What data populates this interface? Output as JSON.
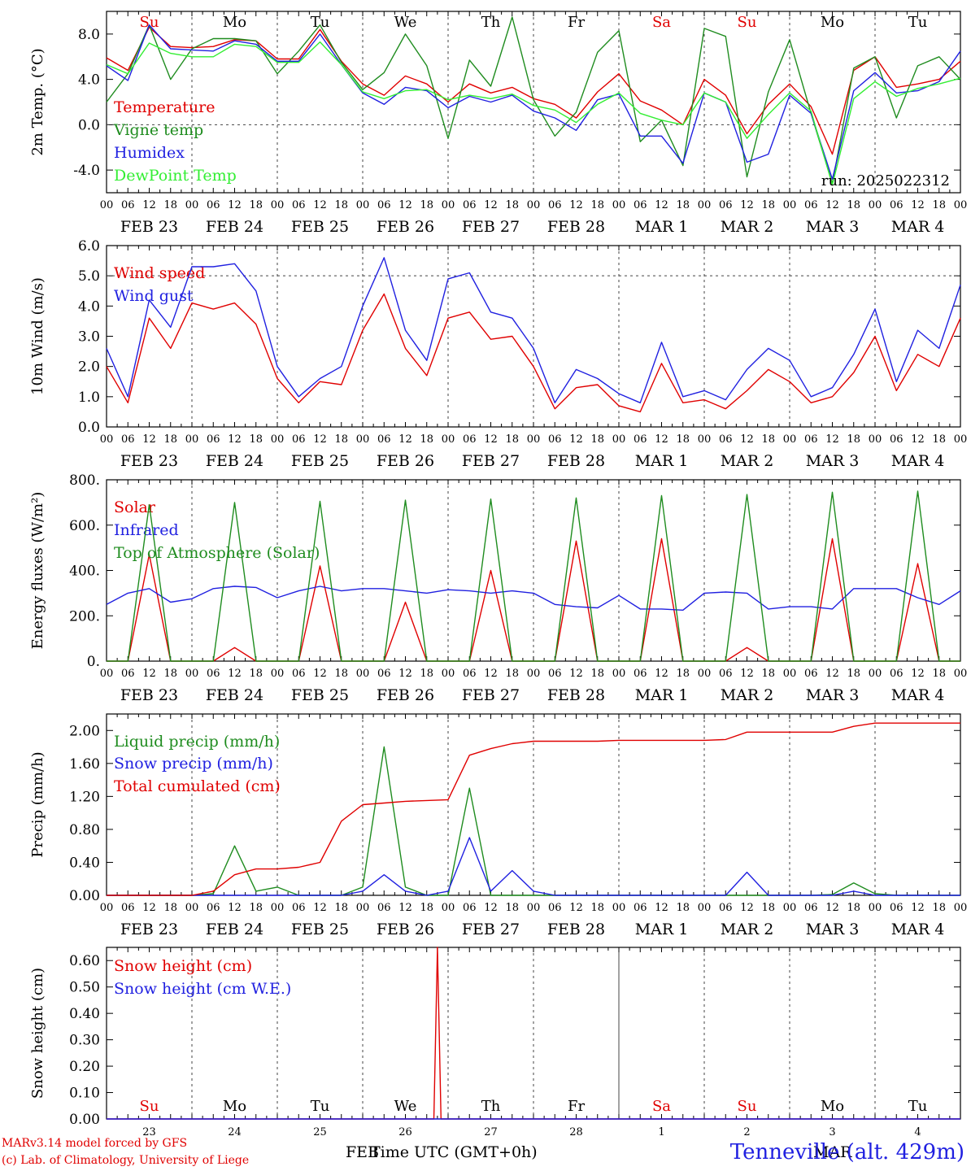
{
  "weekdays": [
    "Su",
    "Mo",
    "Tu",
    "We",
    "Th",
    "Fr",
    "Sa",
    "Su",
    "Mo",
    "Tu"
  ],
  "weekday_colors": [
    "#e00000",
    "#000000",
    "#000000",
    "#000000",
    "#000000",
    "#000000",
    "#e00000",
    "#e00000",
    "#000000",
    "#000000"
  ],
  "date_labels": [
    "FEB 23",
    "FEB 24",
    "FEB 25",
    "FEB 26",
    "FEB 27",
    "FEB 28",
    "MAR  1",
    "MAR  2",
    "MAR  3",
    "MAR  4"
  ],
  "hour_labels": [
    "00",
    "06",
    "12",
    "18"
  ],
  "end_hour_label": "00",
  "day_numbers": [
    "23",
    "24",
    "25",
    "26",
    "27",
    "28",
    "1",
    "2",
    "3",
    "4"
  ],
  "footer": {
    "credit1": "MARv3.14 model forced by GFS",
    "credit2": "(c) Lab. of Climatology, University of Liege",
    "xlabel": "Time UTC (GMT+0h)",
    "month_left": "FEB",
    "month_right": "MAR",
    "station": "Tenneville (alt. 429m)"
  },
  "chart_data": [
    {
      "type": "line",
      "ylabel": "2m Temp. (°C)",
      "ylim": [
        -6.0,
        10.0
      ],
      "yticks": [
        -4.0,
        0.0,
        4.0,
        8.0
      ],
      "ytick_labels": [
        "-4.0",
        "0.0",
        "4.0",
        "8.0"
      ],
      "ref_lines": [
        0.0
      ],
      "annotation": "run: 2025022312",
      "x_hours": [
        0,
        6,
        12,
        18,
        24,
        30,
        36,
        42,
        48,
        54,
        60,
        66,
        72,
        78,
        84,
        90,
        96,
        102,
        108,
        114,
        120,
        126,
        132,
        138,
        144,
        150,
        156,
        162,
        168,
        174,
        180,
        186,
        192,
        198,
        204,
        210,
        216,
        222,
        228,
        234,
        240
      ],
      "series": [
        {
          "name": "Temperature",
          "color": "#e00000",
          "values": [
            5.9,
            4.8,
            8.6,
            6.9,
            6.8,
            6.9,
            7.5,
            7.4,
            5.8,
            5.8,
            8.4,
            5.6,
            3.6,
            2.6,
            4.3,
            3.6,
            2.0,
            3.6,
            2.8,
            3.3,
            2.3,
            1.8,
            0.6,
            2.9,
            4.5,
            2.1,
            1.3,
            0.0,
            4.0,
            2.6,
            -0.8,
            1.8,
            3.6,
            1.6,
            -2.6,
            4.8,
            6.0,
            3.3,
            3.6,
            4.0,
            5.6
          ]
        },
        {
          "name": "Vigne temp",
          "color": "#1f8c1f",
          "values": [
            2.0,
            4.5,
            8.8,
            4.0,
            6.7,
            7.6,
            7.6,
            7.4,
            4.5,
            6.5,
            8.8,
            5.5,
            3.1,
            4.6,
            8.0,
            5.2,
            -1.2,
            5.7,
            3.4,
            9.5,
            2.2,
            -1.0,
            1.1,
            6.4,
            8.3,
            -1.5,
            0.4,
            -3.6,
            8.5,
            7.8,
            -4.6,
            2.9,
            7.5,
            1.0,
            -5.2,
            5.0,
            6.0,
            0.6,
            5.2,
            6.0,
            4.0
          ]
        },
        {
          "name": "Humidex",
          "color": "#2020e0",
          "values": [
            5.2,
            3.9,
            8.8,
            6.7,
            6.6,
            6.5,
            7.4,
            7.1,
            5.6,
            5.6,
            8.0,
            5.3,
            2.8,
            1.8,
            3.3,
            3.0,
            1.5,
            2.5,
            2.0,
            2.6,
            1.2,
            0.6,
            -0.5,
            2.2,
            2.7,
            -1.0,
            -1.0,
            -3.4,
            2.8,
            2.0,
            -3.3,
            -2.6,
            2.6,
            1.0,
            -4.8,
            3.0,
            4.6,
            2.8,
            3.0,
            3.8,
            6.5
          ]
        },
        {
          "name": "DewPoint Temp",
          "color": "#33ee33",
          "values": [
            5.3,
            4.5,
            7.2,
            6.3,
            6.0,
            6.0,
            7.1,
            6.9,
            5.5,
            5.5,
            7.3,
            5.3,
            2.9,
            2.3,
            3.0,
            3.1,
            2.2,
            2.6,
            2.3,
            2.7,
            1.7,
            1.3,
            0.2,
            1.8,
            2.8,
            1.0,
            0.4,
            0.0,
            2.8,
            2.0,
            -1.2,
            0.9,
            2.8,
            1.2,
            -5.3,
            2.3,
            3.8,
            2.5,
            3.2,
            3.6,
            4.1
          ]
        }
      ]
    },
    {
      "type": "line",
      "ylabel": "10m Wind (m/s)",
      "ylim": [
        0.0,
        6.0
      ],
      "yticks": [
        0.0,
        1.0,
        2.0,
        3.0,
        4.0,
        5.0,
        6.0
      ],
      "ytick_labels": [
        "0.0",
        "1.0",
        "2.0",
        "3.0",
        "4.0",
        "5.0",
        "6.0"
      ],
      "ref_lines": [
        5.0
      ],
      "x_hours": [
        0,
        6,
        12,
        18,
        24,
        30,
        36,
        42,
        48,
        54,
        60,
        66,
        72,
        78,
        84,
        90,
        96,
        102,
        108,
        114,
        120,
        126,
        132,
        138,
        144,
        150,
        156,
        162,
        168,
        174,
        180,
        186,
        192,
        198,
        204,
        210,
        216,
        222,
        228,
        234,
        240
      ],
      "series": [
        {
          "name": "Wind speed",
          "color": "#e00000",
          "values": [
            2.0,
            0.8,
            3.6,
            2.6,
            4.1,
            3.9,
            4.1,
            3.4,
            1.6,
            0.8,
            1.5,
            1.4,
            3.2,
            4.4,
            2.6,
            1.7,
            3.6,
            3.8,
            2.9,
            3.0,
            2.0,
            0.6,
            1.3,
            1.4,
            0.7,
            0.5,
            2.1,
            0.8,
            0.9,
            0.6,
            1.2,
            1.9,
            1.5,
            0.8,
            1.0,
            1.8,
            3.0,
            1.2,
            2.4,
            2.0,
            3.6
          ]
        },
        {
          "name": "Wind gust",
          "color": "#2020e0",
          "values": [
            2.6,
            1.0,
            4.2,
            3.3,
            5.3,
            5.3,
            5.4,
            4.5,
            2.0,
            1.0,
            1.6,
            2.0,
            4.0,
            5.6,
            3.2,
            2.2,
            4.9,
            5.1,
            3.8,
            3.6,
            2.6,
            0.8,
            1.9,
            1.6,
            1.1,
            0.8,
            2.8,
            1.0,
            1.2,
            0.9,
            1.9,
            2.6,
            2.2,
            1.0,
            1.3,
            2.4,
            3.9,
            1.5,
            3.2,
            2.6,
            4.7
          ]
        }
      ]
    },
    {
      "type": "line",
      "ylabel": "Energy fluxes (W/m²)",
      "ylim": [
        0,
        800
      ],
      "yticks": [
        0,
        200,
        400,
        600,
        800
      ],
      "ytick_labels": [
        "0.",
        "200.",
        "400.",
        "600.",
        "800."
      ],
      "ref_lines": [],
      "x_hours": [
        0,
        6,
        12,
        18,
        24,
        30,
        36,
        42,
        48,
        54,
        60,
        66,
        72,
        78,
        84,
        90,
        96,
        102,
        108,
        114,
        120,
        126,
        132,
        138,
        144,
        150,
        156,
        162,
        168,
        174,
        180,
        186,
        192,
        198,
        204,
        210,
        216,
        222,
        228,
        234,
        240
      ],
      "series": [
        {
          "name": "Solar",
          "color": "#e00000",
          "values": [
            0,
            0,
            470,
            0,
            0,
            0,
            60,
            0,
            0,
            0,
            420,
            0,
            0,
            0,
            260,
            0,
            0,
            0,
            400,
            0,
            0,
            0,
            530,
            0,
            0,
            0,
            540,
            0,
            0,
            0,
            60,
            0,
            0,
            0,
            540,
            0,
            0,
            0,
            430,
            0,
            0
          ]
        },
        {
          "name": "Infrared",
          "color": "#2020e0",
          "values": [
            250,
            300,
            320,
            260,
            275,
            320,
            330,
            325,
            280,
            310,
            330,
            310,
            320,
            320,
            310,
            300,
            315,
            310,
            300,
            310,
            300,
            250,
            240,
            235,
            290,
            230,
            230,
            225,
            300,
            305,
            300,
            230,
            240,
            240,
            230,
            320,
            320,
            320,
            280,
            250,
            310
          ]
        },
        {
          "name": "Top of Atmosphere (Solar)",
          "color": "#1f8c1f",
          "values": [
            0,
            0,
            690,
            0,
            0,
            0,
            700,
            0,
            0,
            0,
            705,
            0,
            0,
            0,
            710,
            0,
            0,
            0,
            715,
            0,
            0,
            0,
            720,
            0,
            0,
            0,
            730,
            0,
            0,
            0,
            735,
            0,
            0,
            0,
            745,
            0,
            0,
            0,
            750,
            0,
            0
          ]
        }
      ]
    },
    {
      "type": "line",
      "ylabel": "Precip (mm/h)",
      "ylim": [
        0.0,
        2.2
      ],
      "yticks": [
        0.0,
        0.4,
        0.8,
        1.2,
        1.6,
        2.0
      ],
      "ytick_labels": [
        "0.00",
        "0.40",
        "0.80",
        "1.20",
        "1.60",
        "2.00"
      ],
      "ref_lines": [],
      "x_hours": [
        0,
        6,
        12,
        18,
        24,
        30,
        36,
        42,
        48,
        54,
        60,
        66,
        72,
        78,
        84,
        90,
        96,
        102,
        108,
        114,
        120,
        126,
        132,
        138,
        144,
        150,
        156,
        162,
        168,
        174,
        180,
        186,
        192,
        198,
        204,
        210,
        216,
        222,
        228,
        234,
        240
      ],
      "series": [
        {
          "name": "Liquid precip (mm/h)",
          "color": "#1f8c1f",
          "values": [
            0,
            0,
            0,
            0,
            0,
            0.02,
            0.6,
            0.05,
            0.1,
            0,
            0,
            0,
            0.1,
            1.8,
            0.1,
            0,
            0,
            1.3,
            0,
            0,
            0,
            0,
            0,
            0,
            0,
            0,
            0,
            0,
            0,
            0,
            0,
            0,
            0,
            0,
            0.01,
            0.15,
            0.02,
            0,
            0,
            0,
            0
          ]
        },
        {
          "name": "Snow precip (mm/h)",
          "color": "#2020e0",
          "values": [
            0,
            0,
            0,
            0,
            0,
            0,
            0,
            0,
            0,
            0,
            0,
            0,
            0.05,
            0.25,
            0.05,
            0,
            0.05,
            0.7,
            0.05,
            0.3,
            0.05,
            0,
            0,
            0,
            0,
            0,
            0,
            0,
            0,
            0,
            0.28,
            0,
            0,
            0,
            0,
            0.05,
            0,
            0,
            0,
            0,
            0
          ]
        },
        {
          "name": "Total cumulated (cm)",
          "color": "#e00000",
          "values": [
            0,
            0,
            0,
            0,
            0,
            0.05,
            0.25,
            0.32,
            0.32,
            0.34,
            0.4,
            0.9,
            1.1,
            1.12,
            1.14,
            1.15,
            1.16,
            1.7,
            1.78,
            1.84,
            1.87,
            1.87,
            1.87,
            1.87,
            1.88,
            1.88,
            1.88,
            1.88,
            1.88,
            1.89,
            1.98,
            1.98,
            1.98,
            1.98,
            1.98,
            2.05,
            2.09,
            2.09,
            2.09,
            2.09,
            2.09
          ]
        }
      ]
    },
    {
      "type": "line",
      "ylabel": "Snow height (cm)",
      "ylim": [
        0.0,
        0.65
      ],
      "yticks": [
        0.0,
        0.1,
        0.2,
        0.3,
        0.4,
        0.5,
        0.6
      ],
      "ytick_labels": [
        "0.00",
        "0.10",
        "0.20",
        "0.30",
        "0.40",
        "0.50",
        "0.60"
      ],
      "ref_lines": [],
      "x_hours": [
        0,
        90,
        92,
        93,
        94,
        96,
        240
      ],
      "series": [
        {
          "name": "Snow height (cm)",
          "color": "#e00000",
          "values": [
            0,
            0,
            0,
            0.65,
            0,
            0,
            0
          ]
        },
        {
          "name": "Snow height (cm W.E.)",
          "color": "#2020e0",
          "values": [
            0,
            0,
            0,
            0,
            0,
            0,
            0
          ]
        }
      ]
    }
  ]
}
